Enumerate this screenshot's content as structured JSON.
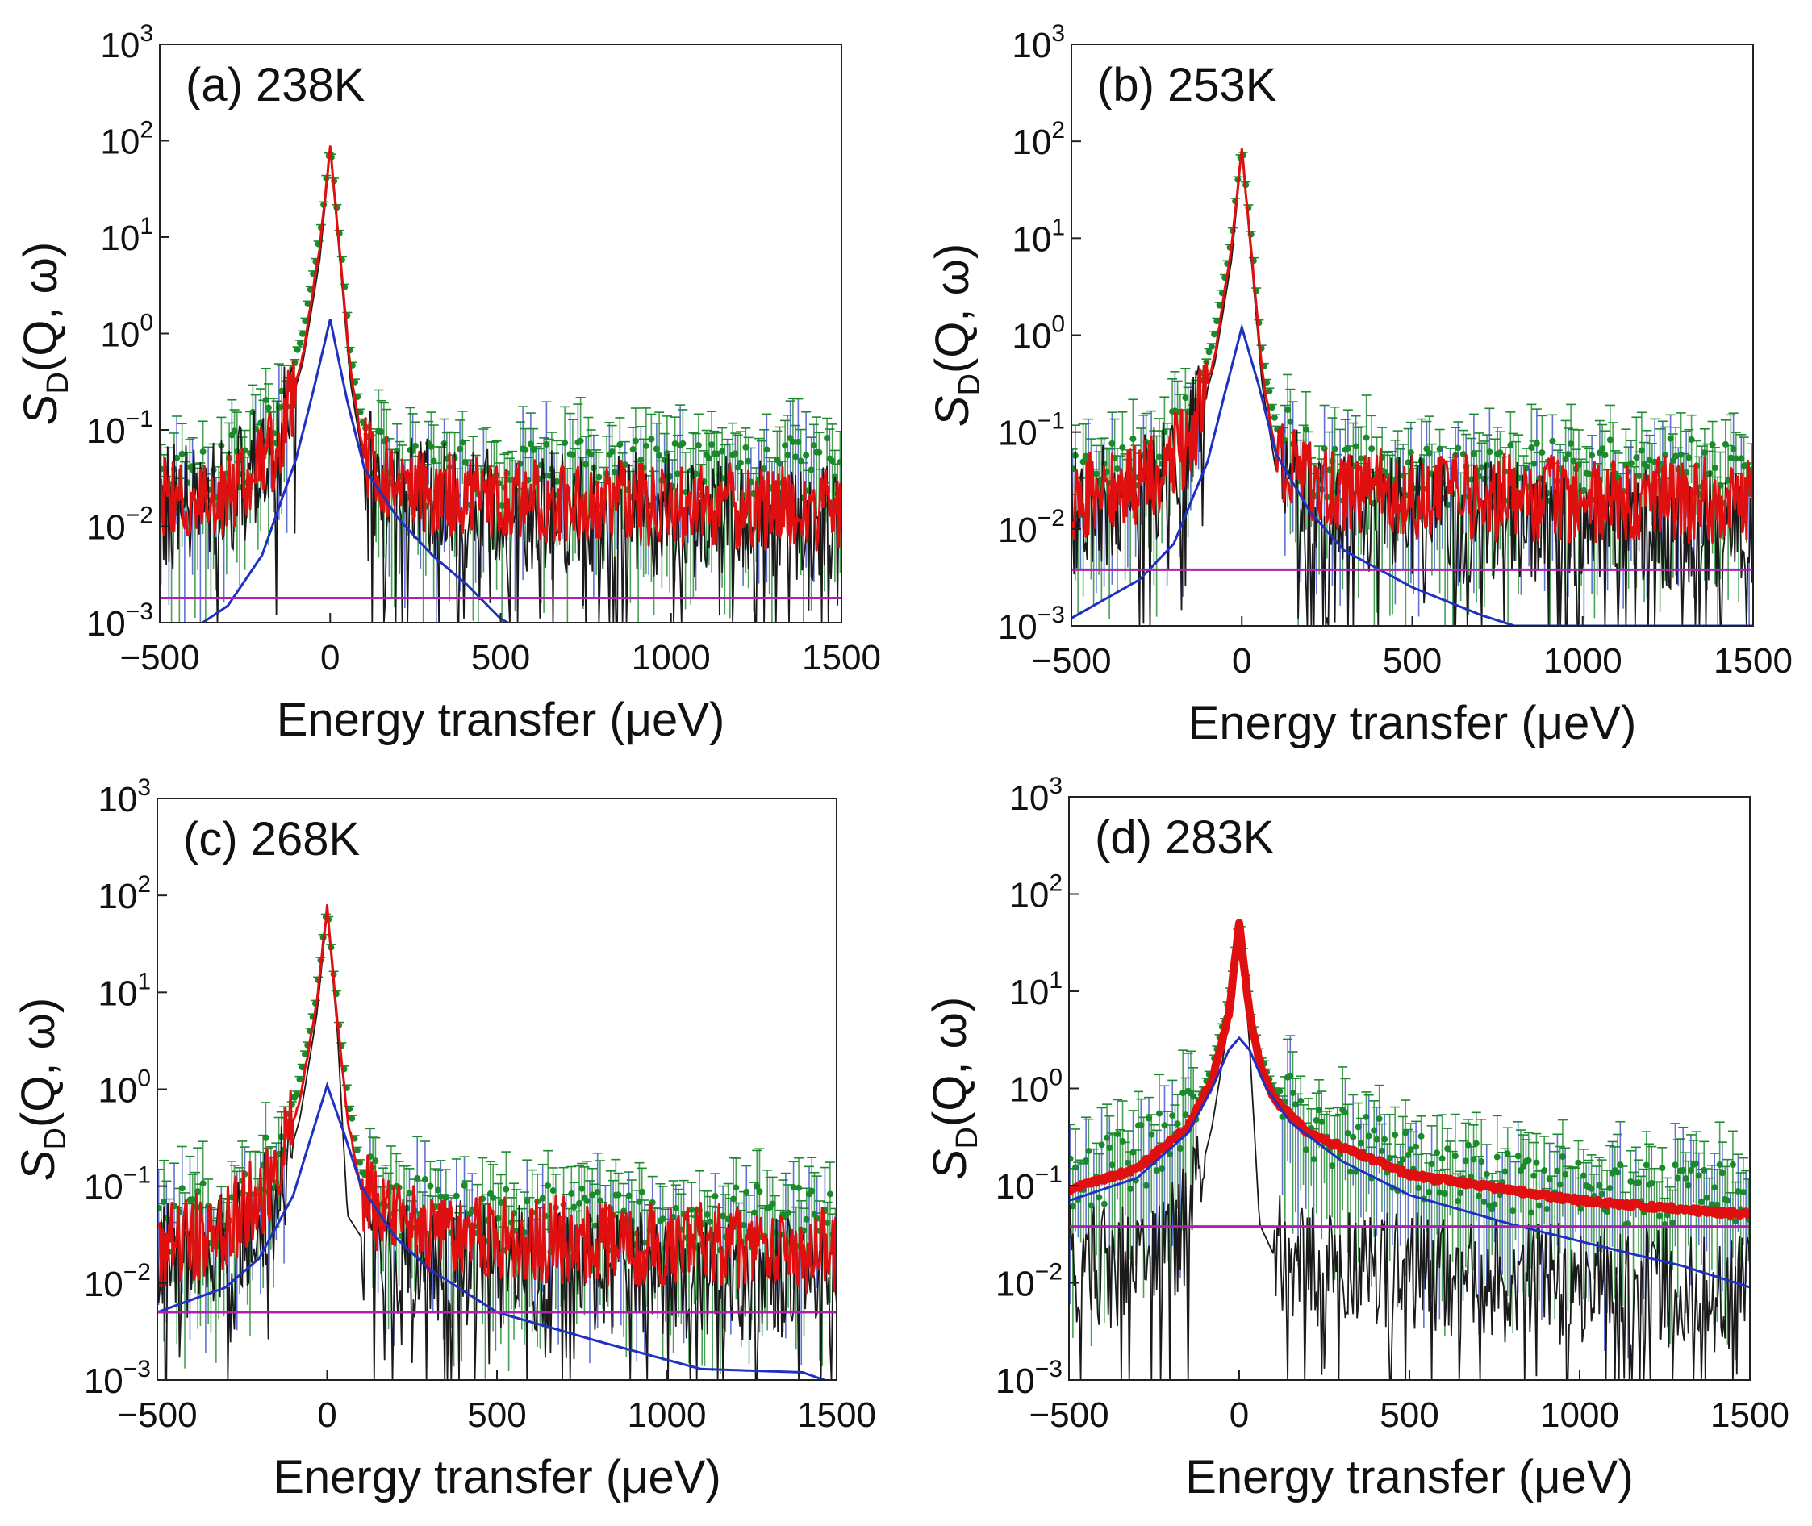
{
  "chart_data": [
    {
      "type": "line",
      "panel": "a",
      "label": "(a) 238K",
      "xlabel": "Energy transfer (μeV)",
      "ylabel": "S_D(Q, ω)",
      "xlim": [
        -500,
        1500
      ],
      "ylim": [
        0.001,
        1000
      ],
      "yscale": "log",
      "xticks": [
        "-500",
        "0",
        "500",
        "1000",
        "1500"
      ],
      "yticks": [
        "3",
        "2",
        "1",
        "0",
        "-1",
        "-2",
        "-3"
      ],
      "grid": false,
      "series": [
        {
          "color": "#1a8a2a",
          "kind": "data-points",
          "values": [
            [
              -500,
              0.03
            ],
            [
              -300,
              0.04
            ],
            [
              -150,
              0.15
            ],
            [
              -80,
              1.0
            ],
            [
              -30,
              10
            ],
            [
              0,
              90
            ],
            [
              30,
              8
            ],
            [
              60,
              0.6
            ],
            [
              100,
              0.1
            ],
            [
              200,
              0.04
            ],
            [
              500,
              0.035
            ],
            [
              1000,
              0.04
            ],
            [
              1500,
              0.04
            ]
          ]
        },
        {
          "color": "#e01010",
          "kind": "total-fit",
          "values": [
            [
              -500,
              0.018
            ],
            [
              -300,
              0.022
            ],
            [
              -150,
              0.07
            ],
            [
              -80,
              0.6
            ],
            [
              -30,
              8
            ],
            [
              0,
              85
            ],
            [
              30,
              6
            ],
            [
              60,
              0.4
            ],
            [
              100,
              0.05
            ],
            [
              200,
              0.025
            ],
            [
              500,
              0.018
            ],
            [
              1000,
              0.017
            ],
            [
              1500,
              0.015
            ]
          ]
        },
        {
          "color": "#1a1a1a",
          "kind": "resolution",
          "values": [
            [
              -500,
              0.015
            ],
            [
              -300,
              0.02
            ],
            [
              -150,
              0.07
            ],
            [
              -80,
              0.5
            ],
            [
              -30,
              6
            ],
            [
              0,
              80
            ],
            [
              30,
              5
            ],
            [
              60,
              0.3
            ],
            [
              100,
              0.04
            ],
            [
              200,
              0.02
            ],
            [
              500,
              0.015
            ],
            [
              1000,
              0.013
            ],
            [
              1500,
              0.012
            ]
          ]
        },
        {
          "color": "#2030c0",
          "kind": "quasielastic",
          "values": [
            [
              -500,
              0.0005
            ],
            [
              -300,
              0.0015
            ],
            [
              -200,
              0.005
            ],
            [
              -100,
              0.05
            ],
            [
              -50,
              0.25
            ],
            [
              0,
              1.4
            ],
            [
              50,
              0.2
            ],
            [
              100,
              0.04
            ],
            [
              200,
              0.012
            ],
            [
              300,
              0.005
            ],
            [
              400,
              0.0025
            ],
            [
              500,
              0.0011
            ],
            [
              600,
              0.0007
            ]
          ]
        },
        {
          "color": "#b020b0",
          "kind": "background",
          "values": [
            [
              -500,
              0.0018
            ],
            [
              1500,
              0.0018
            ]
          ]
        }
      ]
    },
    {
      "type": "line",
      "panel": "b",
      "label": "(b) 253K",
      "xlabel": "Energy transfer (μeV)",
      "ylabel": "S_D(Q, ω)",
      "xlim": [
        -500,
        1500
      ],
      "ylim": [
        0.001,
        1000
      ],
      "yscale": "log",
      "xticks": [
        "-500",
        "0",
        "500",
        "1000",
        "1500"
      ],
      "yticks": [
        "3",
        "2",
        "1",
        "0",
        "-1",
        "-2",
        "-3"
      ],
      "grid": false,
      "series": [
        {
          "color": "#1a8a2a",
          "kind": "data-points",
          "values": [
            [
              -500,
              0.03
            ],
            [
              -300,
              0.045
            ],
            [
              -150,
              0.15
            ],
            [
              -80,
              1.0
            ],
            [
              -30,
              10
            ],
            [
              0,
              90
            ],
            [
              30,
              8
            ],
            [
              60,
              0.6
            ],
            [
              100,
              0.12
            ],
            [
              200,
              0.05
            ],
            [
              500,
              0.04
            ],
            [
              1000,
              0.04
            ],
            [
              1500,
              0.045
            ]
          ]
        },
        {
          "color": "#e01010",
          "kind": "total-fit",
          "values": [
            [
              -500,
              0.02
            ],
            [
              -300,
              0.028
            ],
            [
              -150,
              0.08
            ],
            [
              -80,
              0.6
            ],
            [
              -30,
              8
            ],
            [
              0,
              85
            ],
            [
              30,
              6
            ],
            [
              60,
              0.4
            ],
            [
              100,
              0.06
            ],
            [
              200,
              0.03
            ],
            [
              500,
              0.022
            ],
            [
              1000,
              0.02
            ],
            [
              1500,
              0.02
            ]
          ]
        },
        {
          "color": "#1a1a1a",
          "kind": "resolution",
          "values": [
            [
              -500,
              0.015
            ],
            [
              -300,
              0.02
            ],
            [
              -150,
              0.07
            ],
            [
              -80,
              0.5
            ],
            [
              -30,
              6
            ],
            [
              0,
              80
            ],
            [
              30,
              5
            ],
            [
              60,
              0.3
            ],
            [
              100,
              0.04
            ],
            [
              200,
              0.018
            ],
            [
              500,
              0.013
            ],
            [
              1000,
              0.01
            ],
            [
              1500,
              0.01
            ]
          ]
        },
        {
          "color": "#2030c0",
          "kind": "quasielastic",
          "values": [
            [
              -500,
              0.0012
            ],
            [
              -300,
              0.003
            ],
            [
              -200,
              0.007
            ],
            [
              -100,
              0.05
            ],
            [
              -50,
              0.25
            ],
            [
              0,
              1.2
            ],
            [
              50,
              0.3
            ],
            [
              100,
              0.06
            ],
            [
              200,
              0.015
            ],
            [
              300,
              0.006
            ],
            [
              500,
              0.0025
            ],
            [
              700,
              0.0013
            ],
            [
              800,
              0.001
            ]
          ]
        },
        {
          "color": "#b020b0",
          "kind": "background",
          "values": [
            [
              -500,
              0.0038
            ],
            [
              1500,
              0.0038
            ]
          ]
        }
      ]
    },
    {
      "type": "line",
      "panel": "c",
      "label": "(c) 268K",
      "xlabel": "Energy transfer (μeV)",
      "ylabel": "S_D(Q, ω)",
      "xlim": [
        -500,
        1500
      ],
      "ylim": [
        0.001,
        1000
      ],
      "yscale": "log",
      "xticks": [
        "-500",
        "0",
        "500",
        "1000",
        "1500"
      ],
      "yticks": [
        "3",
        "2",
        "1",
        "0",
        "-1",
        "-2",
        "-3"
      ],
      "grid": false,
      "series": [
        {
          "color": "#1a8a2a",
          "kind": "data-points",
          "values": [
            [
              -500,
              0.04
            ],
            [
              -300,
              0.06
            ],
            [
              -150,
              0.2
            ],
            [
              -80,
              1.2
            ],
            [
              -30,
              10
            ],
            [
              0,
              80
            ],
            [
              30,
              7
            ],
            [
              60,
              0.8
            ],
            [
              100,
              0.15
            ],
            [
              200,
              0.07
            ],
            [
              500,
              0.05
            ],
            [
              1000,
              0.05
            ],
            [
              1500,
              0.05
            ]
          ]
        },
        {
          "color": "#e01010",
          "kind": "total-fit",
          "values": [
            [
              -500,
              0.025
            ],
            [
              -300,
              0.035
            ],
            [
              -150,
              0.12
            ],
            [
              -80,
              0.8
            ],
            [
              -30,
              8
            ],
            [
              0,
              75
            ],
            [
              30,
              5
            ],
            [
              60,
              0.5
            ],
            [
              100,
              0.09
            ],
            [
              200,
              0.04
            ],
            [
              500,
              0.03
            ],
            [
              1000,
              0.025
            ],
            [
              1500,
              0.022
            ]
          ]
        },
        {
          "color": "#1a1a1a",
          "kind": "resolution",
          "values": [
            [
              -500,
              0.015
            ],
            [
              -300,
              0.02
            ],
            [
              -150,
              0.07
            ],
            [
              -80,
              0.5
            ],
            [
              -30,
              6
            ],
            [
              0,
              70
            ],
            [
              30,
              4
            ],
            [
              60,
              0.05
            ],
            [
              100,
              0.03
            ],
            [
              200,
              0.02
            ],
            [
              500,
              0.015
            ],
            [
              1000,
              0.012
            ],
            [
              1500,
              0.01
            ]
          ]
        },
        {
          "color": "#2030c0",
          "kind": "quasielastic",
          "values": [
            [
              -500,
              0.005
            ],
            [
              -300,
              0.009
            ],
            [
              -200,
              0.018
            ],
            [
              -100,
              0.08
            ],
            [
              -50,
              0.3
            ],
            [
              0,
              1.1
            ],
            [
              50,
              0.35
            ],
            [
              100,
              0.1
            ],
            [
              200,
              0.03
            ],
            [
              300,
              0.014
            ],
            [
              500,
              0.005
            ],
            [
              800,
              0.0025
            ],
            [
              1100,
              0.0013
            ],
            [
              1400,
              0.0012
            ],
            [
              1500,
              0.0009
            ]
          ]
        },
        {
          "color": "#b020b0",
          "kind": "background",
          "values": [
            [
              -500,
              0.005
            ],
            [
              1500,
              0.005
            ]
          ]
        }
      ]
    },
    {
      "type": "line",
      "panel": "d",
      "label": "(d) 283K",
      "xlabel": "Energy transfer (μeV)",
      "ylabel": "S_D(Q, ω)",
      "xlim": [
        -500,
        1500
      ],
      "ylim": [
        0.001,
        1000
      ],
      "yscale": "log",
      "xticks": [
        "-500",
        "0",
        "500",
        "1000",
        "1500"
      ],
      "yticks": [
        "3",
        "2",
        "1",
        "0",
        "-1",
        "-2",
        "-3"
      ],
      "grid": false,
      "series": [
        {
          "color": "#1a8a2a",
          "kind": "data-points",
          "values": [
            [
              -500,
              0.12
            ],
            [
              -300,
              0.2
            ],
            [
              -150,
              0.5
            ],
            [
              -80,
              1.5
            ],
            [
              -30,
              8
            ],
            [
              0,
              55
            ],
            [
              30,
              7
            ],
            [
              60,
              2.2
            ],
            [
              100,
              1.0
            ],
            [
              200,
              0.45
            ],
            [
              500,
              0.18
            ],
            [
              1000,
              0.1
            ],
            [
              1500,
              0.08
            ]
          ]
        },
        {
          "color": "#e01010",
          "kind": "total-fit",
          "values": [
            [
              -500,
              0.09
            ],
            [
              -300,
              0.15
            ],
            [
              -150,
              0.4
            ],
            [
              -80,
              1.2
            ],
            [
              -30,
              6
            ],
            [
              0,
              50
            ],
            [
              30,
              6
            ],
            [
              60,
              1.8
            ],
            [
              100,
              0.8
            ],
            [
              200,
              0.35
            ],
            [
              500,
              0.13
            ],
            [
              1000,
              0.07
            ],
            [
              1500,
              0.05
            ]
          ]
        },
        {
          "color": "#1a1a1a",
          "kind": "resolution",
          "values": [
            [
              -500,
              0.015
            ],
            [
              -300,
              0.015
            ],
            [
              -150,
              0.04
            ],
            [
              -80,
              0.4
            ],
            [
              -30,
              5
            ],
            [
              0,
              50
            ],
            [
              30,
              3
            ],
            [
              60,
              0.04
            ],
            [
              100,
              0.02
            ],
            [
              200,
              0.016
            ],
            [
              500,
              0.012
            ],
            [
              1000,
              0.01
            ],
            [
              1500,
              0.008
            ]
          ]
        },
        {
          "color": "#2030c0",
          "kind": "quasielastic",
          "values": [
            [
              -500,
              0.07
            ],
            [
              -300,
              0.12
            ],
            [
              -150,
              0.35
            ],
            [
              -80,
              1.0
            ],
            [
              -30,
              2.5
            ],
            [
              0,
              3.3
            ],
            [
              30,
              2.5
            ],
            [
              80,
              1.0
            ],
            [
              150,
              0.45
            ],
            [
              300,
              0.18
            ],
            [
              500,
              0.08
            ],
            [
              800,
              0.04
            ],
            [
              1100,
              0.022
            ],
            [
              1300,
              0.015
            ],
            [
              1500,
              0.009
            ]
          ]
        },
        {
          "color": "#b020b0",
          "kind": "background",
          "values": [
            [
              -500,
              0.038
            ],
            [
              1500,
              0.038
            ]
          ]
        }
      ]
    }
  ]
}
